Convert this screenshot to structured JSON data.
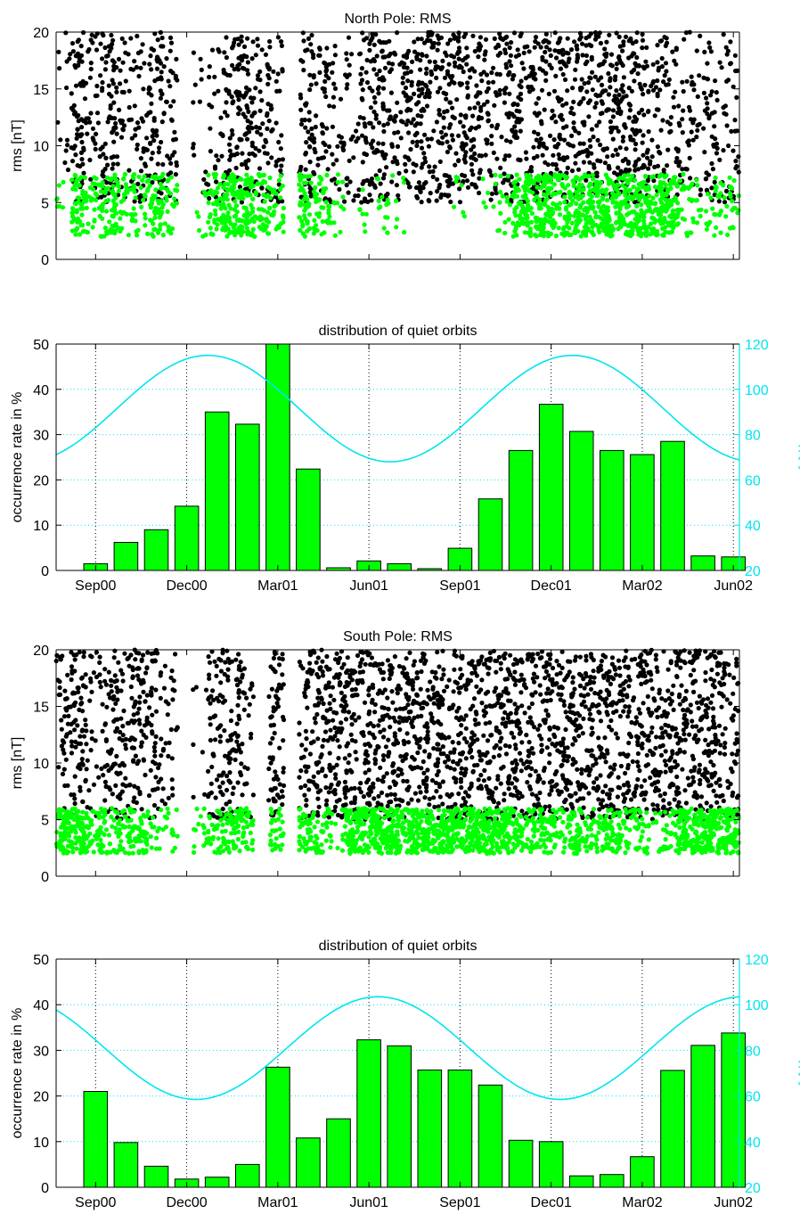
{
  "chart_data": [
    {
      "type": "scatter",
      "title": "North Pole: RMS",
      "xlabel": "",
      "ylabel": "rms [nT]",
      "ylim": [
        0,
        20
      ],
      "yticks": [
        0,
        5,
        10,
        15,
        20
      ],
      "x_axis": "months from Jul 2000",
      "xlim": [
        0,
        22.5
      ],
      "grid": false,
      "series": [
        {
          "color": "#000000",
          "description_note": "",
          "y_range": [
            5,
            20
          ],
          "density": [
            2,
            10,
            5,
            10,
            5,
            6,
            9,
            6,
            0,
            2,
            4,
            8,
            10,
            7,
            6,
            0,
            9,
            6,
            4,
            4,
            9,
            9,
            6,
            10,
            10,
            10,
            10,
            9,
            6,
            8,
            8,
            8,
            8,
            9,
            9,
            10,
            9,
            10,
            10,
            6,
            6,
            5,
            5,
            5,
            5
          ],
          "rows": [
            {
              "x": [
                0.3,
                0.5,
                0.7,
                0.9,
                1.1,
                1.3,
                1.5,
                1.7,
                1.9,
                2.1,
                2.3,
                2.5,
                2.7,
                2.9
              ],
              "y": [
                8.5,
                12,
                16,
                19.5,
                10,
                14,
                18,
                9,
                13,
                17.5,
                11,
                15,
                19,
                8
              ]
            }
          ]
        },
        {
          "color": "#00ff00",
          "y_range": [
            2,
            7.5
          ],
          "density": [
            1,
            8,
            4,
            8,
            4,
            4,
            7,
            4,
            0,
            1,
            6,
            10,
            10,
            6,
            4,
            0,
            7,
            6,
            2,
            0,
            1,
            2,
            1,
            0,
            0,
            0,
            1,
            0,
            1,
            2,
            8,
            10,
            9,
            8,
            9,
            10,
            10,
            10,
            10,
            10,
            10,
            3,
            2,
            3,
            3
          ],
          "rows": []
        }
      ]
    },
    {
      "type": "bar",
      "title": "distribution of quiet orbits",
      "xlabel": "",
      "ylabel": "occurrence rate in %",
      "y2label": "χ [°]",
      "ylim": [
        0,
        50
      ],
      "yticks": [
        0,
        10,
        20,
        30,
        40,
        50
      ],
      "y2lim": [
        20,
        120
      ],
      "y2ticks": [
        20,
        40,
        60,
        80,
        100,
        120
      ],
      "xlim": [
        0,
        22.5
      ],
      "xticks": [
        {
          "x": 1.3,
          "label": "Sep00"
        },
        {
          "x": 4.3,
          "label": "Dec00"
        },
        {
          "x": 7.3,
          "label": "Mar01"
        },
        {
          "x": 10.3,
          "label": "Jun01"
        },
        {
          "x": 13.3,
          "label": "Sep01"
        },
        {
          "x": 16.3,
          "label": "Dec01"
        },
        {
          "x": 19.3,
          "label": "Mar02"
        },
        {
          "x": 22.3,
          "label": "Jun02"
        }
      ],
      "grid": true,
      "bar_color": "#00ff00",
      "line_color": "#00e5ee",
      "x": [
        1.3,
        2.3,
        3.3,
        4.3,
        5.3,
        6.3,
        7.3,
        8.3,
        9.3,
        10.3,
        11.3,
        12.3,
        13.3,
        14.3,
        15.3,
        16.3,
        17.3,
        18.3,
        19.3,
        20.3,
        21.3,
        22.3
      ],
      "values": [
        1.5,
        6.2,
        9,
        14.2,
        35,
        32.3,
        50,
        22.4,
        0.6,
        2.1,
        1.5,
        0.4,
        4.9,
        15.8,
        26.5,
        36.7,
        30.7,
        26.5,
        25.6,
        28.5,
        3.2,
        3
      ],
      "chi_line": {
        "mean": 91.5,
        "amplitude": 23.5,
        "period_months": 12,
        "peak_x": 5.0
      }
    },
    {
      "type": "scatter",
      "title": "South Pole: RMS",
      "xlabel": "",
      "ylabel": "rms [nT]",
      "ylim": [
        0,
        20
      ],
      "yticks": [
        0,
        5,
        10,
        15,
        20
      ],
      "xlim": [
        0,
        22.5
      ],
      "grid": false,
      "series": [
        {
          "color": "#000000",
          "y_range": [
            5,
            20
          ],
          "density": [
            6,
            10,
            4,
            8,
            8,
            10,
            7,
            4,
            0,
            1,
            9,
            8,
            6,
            0,
            10,
            0,
            8,
            10,
            10,
            10,
            10,
            10,
            10,
            10,
            10,
            10,
            10,
            10,
            10,
            10,
            10,
            10,
            10,
            10,
            10,
            10,
            10,
            10,
            10,
            10,
            10,
            10,
            10,
            10,
            8
          ],
          "rows": []
        },
        {
          "color": "#00ff00",
          "y_range": [
            2,
            6
          ],
          "density": [
            10,
            10,
            6,
            4,
            6,
            6,
            2,
            2,
            0,
            2,
            4,
            6,
            6,
            0,
            4,
            0,
            6,
            4,
            2,
            9,
            10,
            10,
            10,
            10,
            10,
            10,
            10,
            10,
            10,
            10,
            6,
            6,
            6,
            4,
            6,
            4,
            6,
            4,
            4,
            2,
            4,
            10,
            10,
            10,
            10
          ],
          "rows": []
        }
      ]
    },
    {
      "type": "bar",
      "title": "distribution of quiet orbits",
      "xlabel": "",
      "ylabel": "occurrence rate in %",
      "y2label": "χ [°]",
      "ylim": [
        0,
        50
      ],
      "yticks": [
        0,
        10,
        20,
        30,
        40,
        50
      ],
      "y2lim": [
        20,
        120
      ],
      "y2ticks": [
        20,
        40,
        60,
        80,
        100,
        120
      ],
      "xlim": [
        0,
        22.5
      ],
      "xticks": [
        {
          "x": 1.3,
          "label": "Sep00"
        },
        {
          "x": 4.3,
          "label": "Dec00"
        },
        {
          "x": 7.3,
          "label": "Mar01"
        },
        {
          "x": 10.3,
          "label": "Jun01"
        },
        {
          "x": 13.3,
          "label": "Sep01"
        },
        {
          "x": 16.3,
          "label": "Dec01"
        },
        {
          "x": 19.3,
          "label": "Mar02"
        },
        {
          "x": 22.3,
          "label": "Jun02"
        }
      ],
      "grid": true,
      "bar_color": "#00ff00",
      "line_color": "#00e5ee",
      "x": [
        1.3,
        2.3,
        3.3,
        4.3,
        5.3,
        6.3,
        7.3,
        8.3,
        9.3,
        10.3,
        11.3,
        12.3,
        13.3,
        14.3,
        15.3,
        16.3,
        17.3,
        18.3,
        19.3,
        20.3,
        21.3,
        22.3
      ],
      "values": [
        21,
        9.8,
        4.6,
        1.8,
        2.2,
        5,
        26.3,
        10.8,
        15,
        32.3,
        31,
        25.7,
        25.7,
        22.4,
        10.3,
        10,
        2.5,
        2.8,
        6.7,
        25.6,
        31.1,
        33.8
      ],
      "chi_line": {
        "mean": 81,
        "amplitude": 22.5,
        "period_months": 12,
        "peak_x": 10.6
      }
    }
  ]
}
